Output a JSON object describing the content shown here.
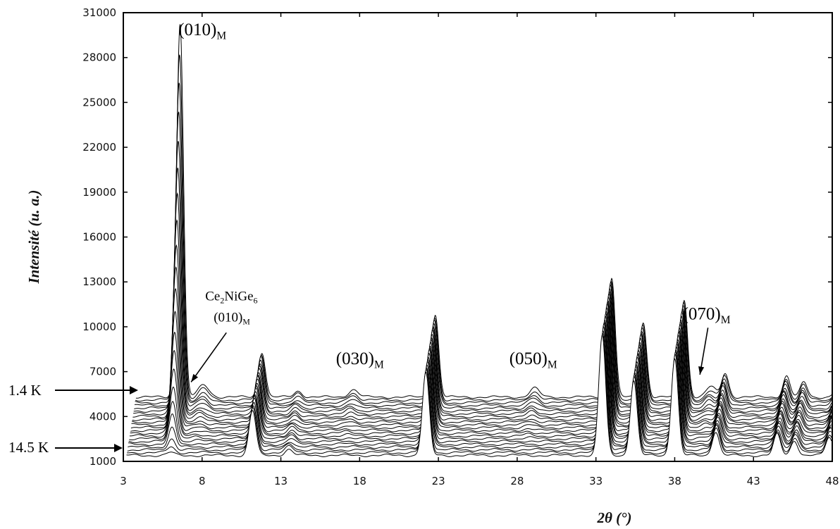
{
  "chart_data": {
    "type": "line",
    "subtype": "stacked-waterfall",
    "xlabel": "2θ (°)",
    "ylabel": "Intensité (u. a.)",
    "xlim": [
      3,
      48
    ],
    "ylim": [
      1000,
      31000
    ],
    "x_ticks": [
      3,
      8,
      13,
      18,
      23,
      28,
      33,
      38,
      43,
      48
    ],
    "y_ticks": [
      1000,
      4000,
      7000,
      10000,
      13000,
      16000,
      19000,
      22000,
      25000,
      28000,
      31000
    ],
    "temperature_labels": {
      "bottom": "14.5 K",
      "top": "1.4 K"
    },
    "n_curves": 22,
    "curves": {
      "bottom_baseline": 1400,
      "top_baseline": 5300,
      "x_shift_total": 0.6,
      "peaks": [
        {
          "hkl": "(010)M",
          "x": 6.0,
          "height_top": 25000,
          "height_bottom": 200,
          "width": 0.22,
          "magnetic": true
        },
        {
          "hkl": "Ce2NiGe6 (010)M",
          "x": 7.5,
          "height_top": 800,
          "height_bottom": 0,
          "width": 0.35,
          "magnetic": true
        },
        {
          "hkl": "",
          "x": 11.2,
          "height_top": 3000,
          "height_bottom": 3000,
          "width": 0.22,
          "magnetic": false
        },
        {
          "hkl": "",
          "x": 13.5,
          "height_top": 400,
          "height_bottom": 400,
          "width": 0.25,
          "magnetic": false
        },
        {
          "hkl": "(030)M",
          "x": 17.0,
          "height_top": 500,
          "height_bottom": 0,
          "width": 0.3,
          "magnetic": true
        },
        {
          "hkl": "",
          "x": 22.2,
          "height_top": 5500,
          "height_bottom": 5500,
          "width": 0.22,
          "magnetic": false
        },
        {
          "hkl": "(050)M",
          "x": 28.5,
          "height_top": 600,
          "height_bottom": 0,
          "width": 0.3,
          "magnetic": true
        },
        {
          "hkl": "",
          "x": 33.4,
          "height_top": 8000,
          "height_bottom": 8000,
          "width": 0.22,
          "magnetic": false
        },
        {
          "hkl": "",
          "x": 35.4,
          "height_top": 5000,
          "height_bottom": 5000,
          "width": 0.22,
          "magnetic": false
        },
        {
          "hkl": "",
          "x": 38.0,
          "height_top": 6500,
          "height_bottom": 6500,
          "width": 0.22,
          "magnetic": false
        },
        {
          "hkl": "(070)M",
          "x": 39.7,
          "height_top": 700,
          "height_bottom": 0,
          "width": 0.3,
          "magnetic": true
        },
        {
          "hkl": "",
          "x": 40.6,
          "height_top": 1600,
          "height_bottom": 1600,
          "width": 0.22,
          "magnetic": false
        },
        {
          "hkl": "",
          "x": 44.5,
          "height_top": 1400,
          "height_bottom": 1400,
          "width": 0.22,
          "magnetic": false
        },
        {
          "hkl": "",
          "x": 45.6,
          "height_top": 1000,
          "height_bottom": 1000,
          "width": 0.22,
          "magnetic": false
        },
        {
          "hkl": "",
          "x": 47.8,
          "height_top": 1200,
          "height_bottom": 1200,
          "width": 0.22,
          "magnetic": false
        }
      ]
    },
    "annotations": [
      {
        "text": "(010)",
        "sub": "M",
        "x": 6.5,
        "y": 29500
      },
      {
        "text": "Ce",
        "sub2": "2",
        "mid": "NiGe",
        "sub3": "6",
        "line2": "(010)",
        "line2sub": "M",
        "x": 8.2,
        "y": 11300,
        "arrow_to": [
          7.3,
          6300
        ]
      },
      {
        "text": "(030)",
        "sub": "M",
        "x": 16.5,
        "y": 7500
      },
      {
        "text": "(050)",
        "sub": "M",
        "x": 27.5,
        "y": 7500
      },
      {
        "text": "(070)",
        "sub": "M",
        "x": 38.5,
        "y": 10500,
        "arrow_to": [
          39.6,
          6800
        ]
      }
    ]
  }
}
